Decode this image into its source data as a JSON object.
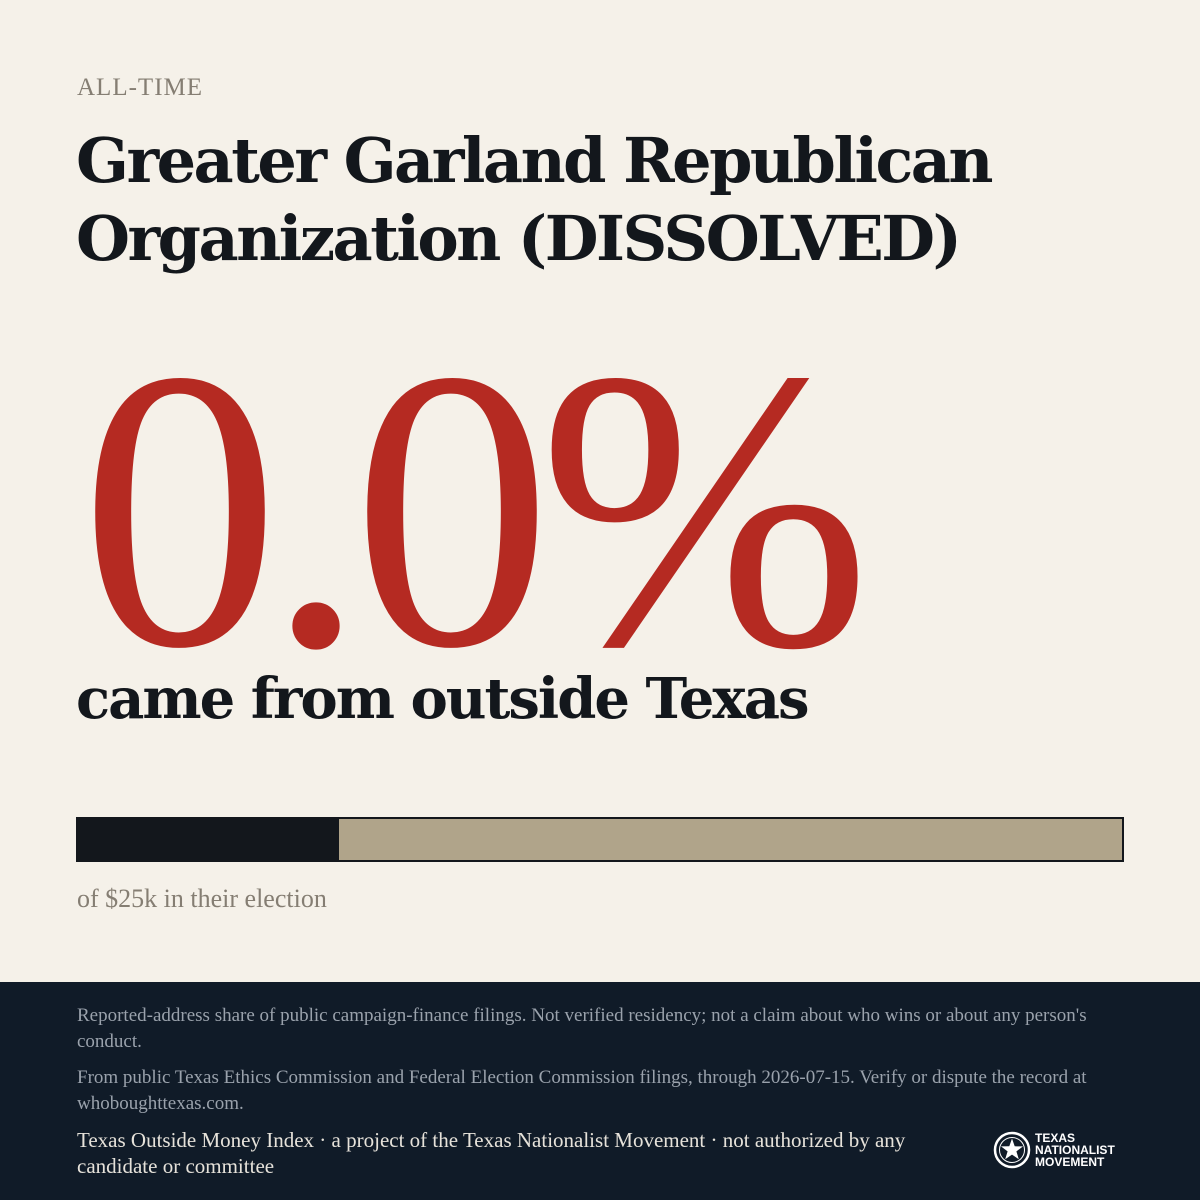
{
  "eyebrow": "ALL-TIME",
  "title": "Greater Garland Republican Organization (DISSOLVED)",
  "stat": {
    "value": "0.0%",
    "caption": "came from outside Texas"
  },
  "bar": {
    "fill_fraction": 0.25,
    "note": "of $25k in their election",
    "colors": {
      "fill": "#13171c",
      "track": "#b0a48a"
    }
  },
  "footer": {
    "disclaimer": "Reported-address share of public campaign-finance filings. Not verified residency; not a claim about who wins or about any person's conduct.",
    "source": "From public Texas Ethics Commission and Federal Election Commission filings, through 2026-07-15. Verify or dispute the record at whoboughttexas.com.",
    "credit": "Texas Outside Money Index · a project of the Texas Nationalist Movement · not authorized by any candidate or committee",
    "logo": {
      "icon": "star-circle-icon",
      "lines": [
        "TEXAS",
        "NATIONALIST",
        "MOVEMENT"
      ]
    }
  },
  "colors": {
    "background": "#f5f1e9",
    "accent": "#b52a22",
    "footer": "#101b28"
  }
}
